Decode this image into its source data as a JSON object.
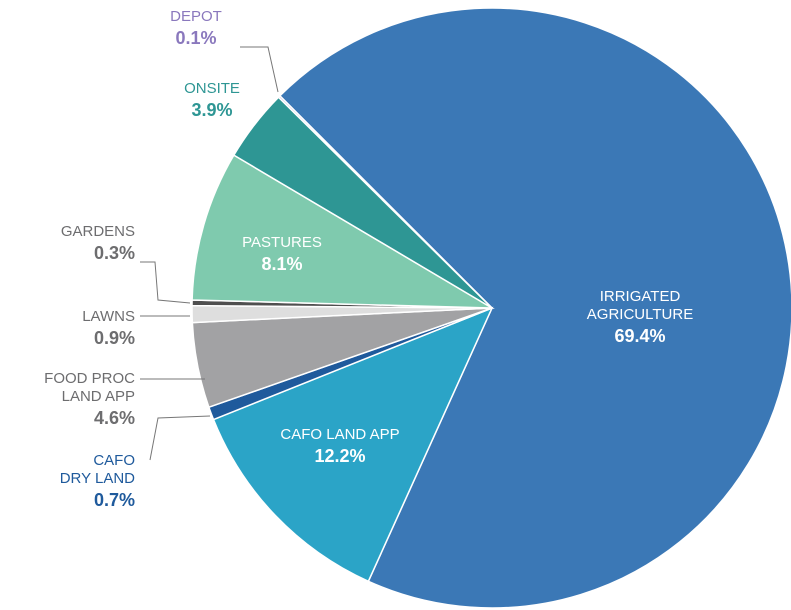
{
  "chart_data": {
    "type": "pie",
    "categories": [
      "IRRIGATED AGRICULTURE",
      "CAFO LAND APP",
      "CAFO\nDRY LAND",
      "FOOD PROC\nLAND APP",
      "LAWNS",
      "GARDENS",
      "PASTURES",
      "ONSITE",
      "DEPOT"
    ],
    "values": [
      69.4,
      12.2,
      0.7,
      4.6,
      0.9,
      0.3,
      8.1,
      3.9,
      0.1
    ],
    "value_labels": [
      "69.4%",
      "12.2%",
      "0.7%",
      "4.6%",
      "0.9%",
      "0.3%",
      "8.1%",
      "3.9%",
      "0.1%"
    ],
    "colors": [
      "#3b78b6",
      "#2ba4c7",
      "#1f5a9c",
      "#a2a2a4",
      "#dedede",
      "#4f4f4f",
      "#7fcaae",
      "#2e9694",
      "#b7acd6"
    ]
  }
}
